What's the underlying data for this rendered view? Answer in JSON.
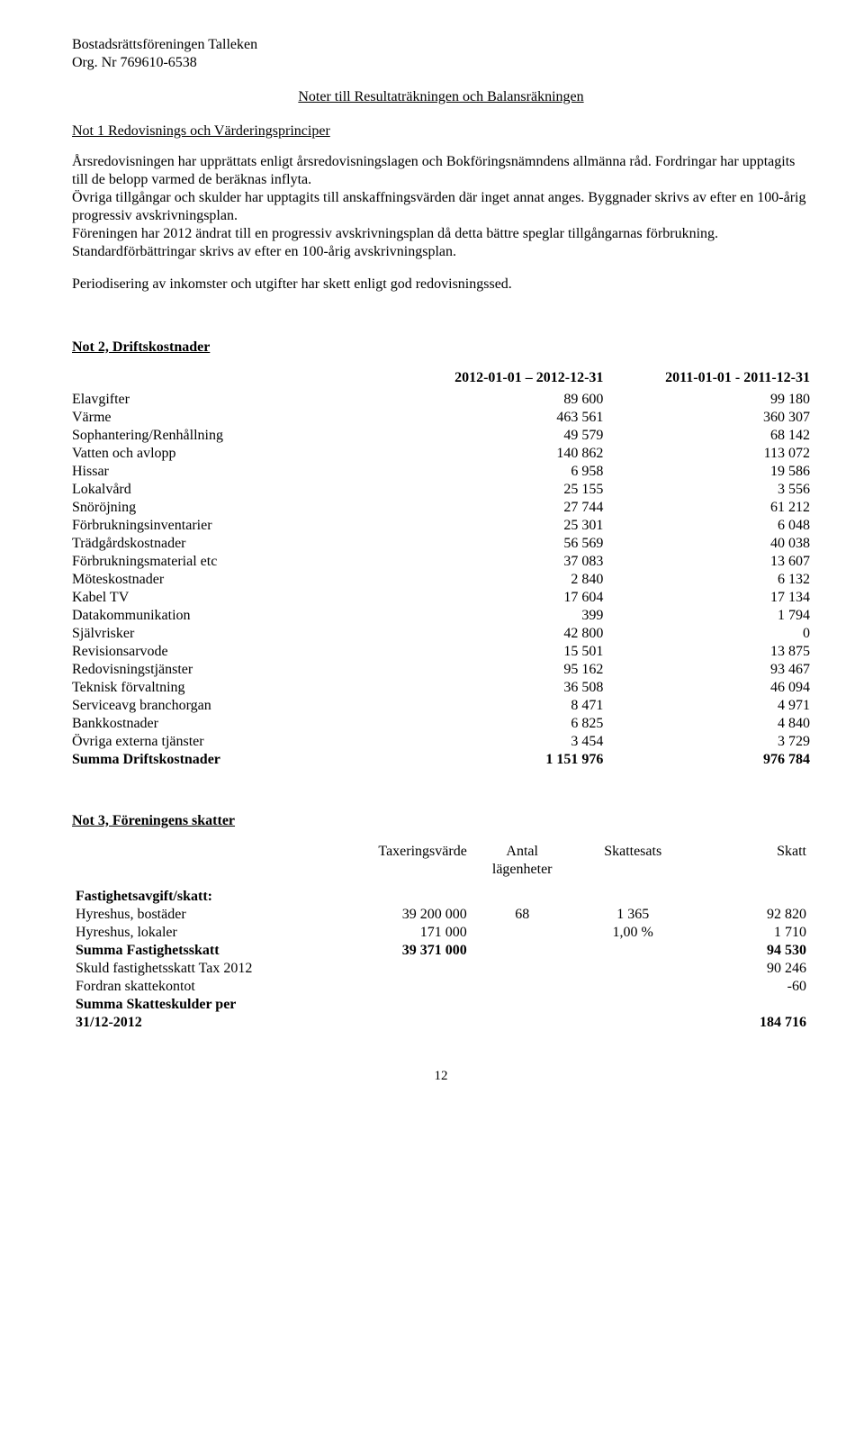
{
  "header": {
    "org_name": "Bostadsrättsföreningen Talleken",
    "org_nr": "Org. Nr 769610-6538"
  },
  "titles": {
    "main": "Noter till Resultaträkningen och Balansräkningen",
    "not1": "Not 1 Redovisnings och Värderingsprinciper",
    "not2": "Not 2, Driftskostnader",
    "not3": "Not 3, Föreningens skatter"
  },
  "not1": {
    "p1": "Årsredovisningen har upprättats enligt årsredovisningslagen och Bokföringsnämndens allmänna råd. Fordringar har upptagits till de belopp varmed de beräknas inflyta.",
    "p2": "Övriga tillgångar och skulder har upptagits till anskaffningsvärden där inget annat anges. Byggnader skrivs av efter en 100-årig progressiv avskrivningsplan.",
    "p3": "Föreningen har 2012 ändrat till en progressiv avskrivningsplan då detta bättre speglar tillgångarnas förbrukning.",
    "p4": "Standardförbättringar skrivs av efter en 100-årig avskrivningsplan.",
    "p5": "Periodisering av inkomster och utgifter har skett enligt god redovisningssed."
  },
  "drift": {
    "col1_header": "2012-01-01 – 2012-12-31",
    "col2_header": "2011-01-01  -  2011-12-31",
    "rows": [
      {
        "label": "Elavgifter",
        "v1": "89 600",
        "v2": "99 180"
      },
      {
        "label": "Värme",
        "v1": "463 561",
        "v2": "360 307"
      },
      {
        "label": "Sophantering/Renhållning",
        "v1": "49 579",
        "v2": "68 142"
      },
      {
        "label": "Vatten och avlopp",
        "v1": "140 862",
        "v2": "113 072"
      },
      {
        "label": "Hissar",
        "v1": "6 958",
        "v2": "19 586"
      },
      {
        "label": "Lokalvård",
        "v1": "25 155",
        "v2": "3 556"
      },
      {
        "label": "Snöröjning",
        "v1": "27 744",
        "v2": "61 212"
      },
      {
        "label": "Förbrukningsinventarier",
        "v1": "25 301",
        "v2": "6 048"
      },
      {
        "label": "Trädgårdskostnader",
        "v1": "56 569",
        "v2": "40 038"
      },
      {
        "label": "Förbrukningsmaterial etc",
        "v1": "37 083",
        "v2": "13 607"
      },
      {
        "label": "Möteskostnader",
        "v1": "2 840",
        "v2": "6 132"
      },
      {
        "label": "Kabel TV",
        "v1": "17 604",
        "v2": "17 134"
      },
      {
        "label": "Datakommunikation",
        "v1": "399",
        "v2": "1 794"
      },
      {
        "label": "Självrisker",
        "v1": "42 800",
        "v2": "0"
      },
      {
        "label": "Revisionsarvode",
        "v1": "15 501",
        "v2": "13 875"
      },
      {
        "label": "Redovisningstjänster",
        "v1": "95 162",
        "v2": "93 467"
      },
      {
        "label": "Teknisk förvaltning",
        "v1": "36 508",
        "v2": "46 094"
      },
      {
        "label": "Serviceavg branchorgan",
        "v1": "8 471",
        "v2": "4 971"
      },
      {
        "label": "Bankkostnader",
        "v1": "6 825",
        "v2": "4 840"
      },
      {
        "label": "Övriga externa tjänster",
        "v1": "3 454",
        "v2": "3 729"
      }
    ],
    "total": {
      "label": "Summa Driftskostnader",
      "v1": "1 151 976",
      "v2": "976 784"
    }
  },
  "tax": {
    "headers": {
      "c2": "Taxeringsvärde",
      "c3": "Antal lägenheter",
      "c3a": "Antal",
      "c3b": "lägenheter",
      "c4": "Skattesats",
      "c5": "Skatt"
    },
    "section_label": "Fastighetsavgift/skatt:",
    "rows": [
      {
        "label": "Hyreshus, bostäder",
        "v2": "39 200 000",
        "v3": "68",
        "v4": "1 365",
        "v5": "92 820"
      },
      {
        "label": "Hyreshus, lokaler",
        "v2": "171 000",
        "v3": "",
        "v4": "1,00 %",
        "v5": "1 710"
      }
    ],
    "sum1": {
      "label": "Summa Fastighetsskatt",
      "v2": "39 371 000",
      "v5": "94 530"
    },
    "row_skuld": {
      "label": "Skuld fastighetsskatt Tax 2012",
      "v5": "90 246"
    },
    "row_fordran": {
      "label": "Fordran skattekontot",
      "v5": "-60"
    },
    "sum2_label_a": "Summa Skatteskulder per",
    "sum2_label_b": "31/12-2012",
    "sum2_v5": "184 716"
  },
  "page_number": "12"
}
